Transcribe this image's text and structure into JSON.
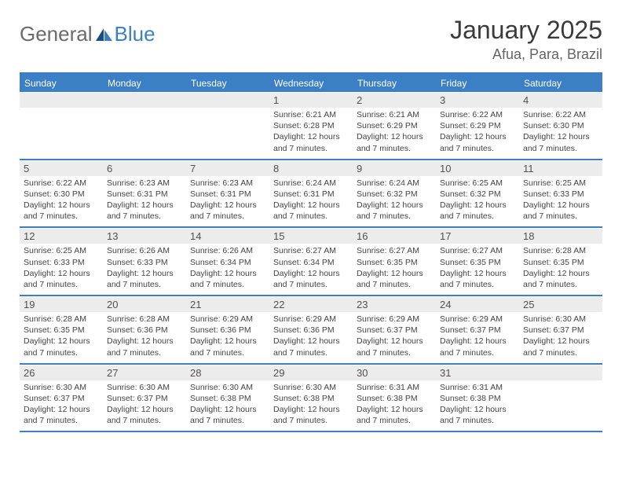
{
  "logo": {
    "general": "General",
    "blue": "Blue"
  },
  "title": "January 2025",
  "location": "Afua, Para, Brazil",
  "colors": {
    "accent": "#3b7fc4",
    "header_text": "#ffffff",
    "daynum_bg": "#ececec",
    "daynum_text": "#515151",
    "body_text": "#444444",
    "title_text": "#3a3a3a",
    "location_text": "#646464",
    "logo_general": "#6b6b6b"
  },
  "day_headers": [
    "Sunday",
    "Monday",
    "Tuesday",
    "Wednesday",
    "Thursday",
    "Friday",
    "Saturday"
  ],
  "weeks": [
    [
      null,
      null,
      null,
      {
        "n": "1",
        "sr": "6:21 AM",
        "ss": "6:28 PM",
        "dl": "12 hours and 7 minutes."
      },
      {
        "n": "2",
        "sr": "6:21 AM",
        "ss": "6:29 PM",
        "dl": "12 hours and 7 minutes."
      },
      {
        "n": "3",
        "sr": "6:22 AM",
        "ss": "6:29 PM",
        "dl": "12 hours and 7 minutes."
      },
      {
        "n": "4",
        "sr": "6:22 AM",
        "ss": "6:30 PM",
        "dl": "12 hours and 7 minutes."
      }
    ],
    [
      {
        "n": "5",
        "sr": "6:22 AM",
        "ss": "6:30 PM",
        "dl": "12 hours and 7 minutes."
      },
      {
        "n": "6",
        "sr": "6:23 AM",
        "ss": "6:31 PM",
        "dl": "12 hours and 7 minutes."
      },
      {
        "n": "7",
        "sr": "6:23 AM",
        "ss": "6:31 PM",
        "dl": "12 hours and 7 minutes."
      },
      {
        "n": "8",
        "sr": "6:24 AM",
        "ss": "6:31 PM",
        "dl": "12 hours and 7 minutes."
      },
      {
        "n": "9",
        "sr": "6:24 AM",
        "ss": "6:32 PM",
        "dl": "12 hours and 7 minutes."
      },
      {
        "n": "10",
        "sr": "6:25 AM",
        "ss": "6:32 PM",
        "dl": "12 hours and 7 minutes."
      },
      {
        "n": "11",
        "sr": "6:25 AM",
        "ss": "6:33 PM",
        "dl": "12 hours and 7 minutes."
      }
    ],
    [
      {
        "n": "12",
        "sr": "6:25 AM",
        "ss": "6:33 PM",
        "dl": "12 hours and 7 minutes."
      },
      {
        "n": "13",
        "sr": "6:26 AM",
        "ss": "6:33 PM",
        "dl": "12 hours and 7 minutes."
      },
      {
        "n": "14",
        "sr": "6:26 AM",
        "ss": "6:34 PM",
        "dl": "12 hours and 7 minutes."
      },
      {
        "n": "15",
        "sr": "6:27 AM",
        "ss": "6:34 PM",
        "dl": "12 hours and 7 minutes."
      },
      {
        "n": "16",
        "sr": "6:27 AM",
        "ss": "6:35 PM",
        "dl": "12 hours and 7 minutes."
      },
      {
        "n": "17",
        "sr": "6:27 AM",
        "ss": "6:35 PM",
        "dl": "12 hours and 7 minutes."
      },
      {
        "n": "18",
        "sr": "6:28 AM",
        "ss": "6:35 PM",
        "dl": "12 hours and 7 minutes."
      }
    ],
    [
      {
        "n": "19",
        "sr": "6:28 AM",
        "ss": "6:35 PM",
        "dl": "12 hours and 7 minutes."
      },
      {
        "n": "20",
        "sr": "6:28 AM",
        "ss": "6:36 PM",
        "dl": "12 hours and 7 minutes."
      },
      {
        "n": "21",
        "sr": "6:29 AM",
        "ss": "6:36 PM",
        "dl": "12 hours and 7 minutes."
      },
      {
        "n": "22",
        "sr": "6:29 AM",
        "ss": "6:36 PM",
        "dl": "12 hours and 7 minutes."
      },
      {
        "n": "23",
        "sr": "6:29 AM",
        "ss": "6:37 PM",
        "dl": "12 hours and 7 minutes."
      },
      {
        "n": "24",
        "sr": "6:29 AM",
        "ss": "6:37 PM",
        "dl": "12 hours and 7 minutes."
      },
      {
        "n": "25",
        "sr": "6:30 AM",
        "ss": "6:37 PM",
        "dl": "12 hours and 7 minutes."
      }
    ],
    [
      {
        "n": "26",
        "sr": "6:30 AM",
        "ss": "6:37 PM",
        "dl": "12 hours and 7 minutes."
      },
      {
        "n": "27",
        "sr": "6:30 AM",
        "ss": "6:37 PM",
        "dl": "12 hours and 7 minutes."
      },
      {
        "n": "28",
        "sr": "6:30 AM",
        "ss": "6:38 PM",
        "dl": "12 hours and 7 minutes."
      },
      {
        "n": "29",
        "sr": "6:30 AM",
        "ss": "6:38 PM",
        "dl": "12 hours and 7 minutes."
      },
      {
        "n": "30",
        "sr": "6:31 AM",
        "ss": "6:38 PM",
        "dl": "12 hours and 7 minutes."
      },
      {
        "n": "31",
        "sr": "6:31 AM",
        "ss": "6:38 PM",
        "dl": "12 hours and 7 minutes."
      },
      null
    ]
  ],
  "labels": {
    "sunrise": "Sunrise:",
    "sunset": "Sunset:",
    "daylight": "Daylight:"
  }
}
